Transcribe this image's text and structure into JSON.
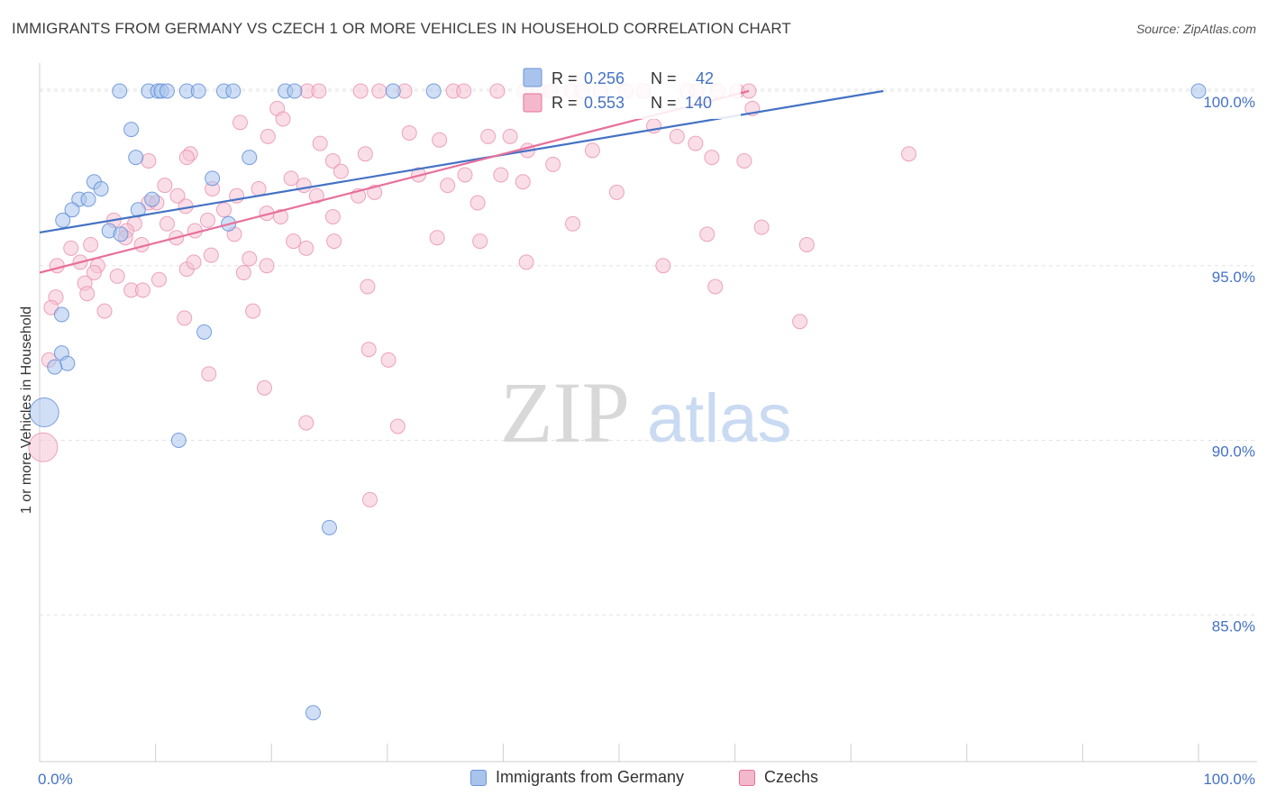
{
  "title": "IMMIGRANTS FROM GERMANY VS CZECH 1 OR MORE VEHICLES IN HOUSEHOLD CORRELATION CHART",
  "source": "Source: ZipAtlas.com",
  "watermark": {
    "zip": "ZIP",
    "atlas": "atlas"
  },
  "colors": {
    "blue": "#4472c4",
    "blue_fill": "#a9c4ec",
    "pink": "#e8709b",
    "pink_fill": "#f4b8cc"
  },
  "legend": [
    {
      "r_label": "R = ",
      "r_value": "0.256",
      "n_label": "N = ",
      "n_value": "42"
    },
    {
      "r_label": "R = ",
      "r_value": "0.553",
      "n_label": "N = ",
      "n_value": "140"
    }
  ],
  "chart_data": {
    "type": "scatter",
    "ylabel": "1 or more Vehicles in Household",
    "xlim": [
      0,
      100
    ],
    "ylim": [
      80.8,
      100.8
    ],
    "y_ticks": [
      {
        "value": 85,
        "label": "85.0%"
      },
      {
        "value": 90,
        "label": "90.0%"
      },
      {
        "value": 95,
        "label": "95.0%"
      },
      {
        "value": 100,
        "label": "100.0%"
      }
    ],
    "x_tick_labels": {
      "left": "0.0%",
      "right": "100.0%"
    },
    "legend_position": "top-center",
    "series": [
      {
        "name": "Immigrants from Germany",
        "color": "#4472c4",
        "trend": {
          "x0": 0,
          "y0": 95.95,
          "x1": 72.8,
          "y1": 100.0
        },
        "points": [
          [
            6.9,
            100
          ],
          [
            9.4,
            100
          ],
          [
            10.2,
            100
          ],
          [
            10.5,
            100
          ],
          [
            11.0,
            100
          ],
          [
            12.7,
            100
          ],
          [
            13.7,
            100
          ],
          [
            15.9,
            100
          ],
          [
            16.7,
            100
          ],
          [
            21.2,
            100
          ],
          [
            22.0,
            100
          ],
          [
            30.5,
            100
          ],
          [
            34.0,
            100
          ],
          [
            100,
            100
          ],
          [
            7.9,
            98.9
          ],
          [
            8.3,
            98.1
          ],
          [
            18.1,
            98.1
          ],
          [
            4.7,
            97.4
          ],
          [
            5.3,
            97.2
          ],
          [
            14.9,
            97.5
          ],
          [
            3.4,
            96.9
          ],
          [
            4.2,
            96.9
          ],
          [
            9.7,
            96.9
          ],
          [
            2.8,
            96.6
          ],
          [
            8.5,
            96.6
          ],
          [
            2.0,
            96.3
          ],
          [
            16.3,
            96.2
          ],
          [
            6.0,
            96.0
          ],
          [
            7.0,
            95.9
          ],
          [
            1.9,
            92.5
          ],
          [
            2.4,
            92.2
          ],
          [
            1.3,
            92.1
          ],
          [
            1.9,
            93.6
          ],
          [
            14.2,
            93.1
          ],
          [
            0.4,
            90.8
          ],
          [
            12.0,
            90.0
          ],
          [
            25.0,
            87.5
          ],
          [
            23.6,
            82.2
          ]
        ]
      },
      {
        "name": "Czechs",
        "color": "#e8709b",
        "trend": {
          "x0": 0,
          "y0": 94.8,
          "x1": 61.2,
          "y1": 100.0
        },
        "points": [
          [
            23.1,
            100
          ],
          [
            27.7,
            100
          ],
          [
            29.3,
            100
          ],
          [
            35.7,
            100
          ],
          [
            36.6,
            100
          ],
          [
            39.5,
            100
          ],
          [
            41.8,
            100
          ],
          [
            43.2,
            100
          ],
          [
            44.1,
            100
          ],
          [
            45.9,
            100
          ],
          [
            46.8,
            100
          ],
          [
            48.4,
            100
          ],
          [
            50.6,
            100
          ],
          [
            52.1,
            100
          ],
          [
            55.9,
            100
          ],
          [
            56.7,
            100
          ],
          [
            58.5,
            100
          ],
          [
            60.2,
            100
          ],
          [
            61.2,
            100
          ],
          [
            24.1,
            100
          ],
          [
            31.5,
            100
          ],
          [
            20.5,
            99.5
          ],
          [
            21.0,
            99.2
          ],
          [
            17.3,
            99.1
          ],
          [
            19.7,
            98.7
          ],
          [
            24.2,
            98.5
          ],
          [
            38.7,
            98.7
          ],
          [
            40.6,
            98.7
          ],
          [
            31.9,
            98.8
          ],
          [
            34.5,
            98.6
          ],
          [
            42.1,
            98.3
          ],
          [
            47.7,
            98.3
          ],
          [
            56.6,
            98.5
          ],
          [
            60.8,
            98.0
          ],
          [
            13.0,
            98.2
          ],
          [
            12.7,
            98.1
          ],
          [
            9.4,
            98.0
          ],
          [
            28.1,
            98.2
          ],
          [
            25.3,
            98.0
          ],
          [
            44.3,
            97.9
          ],
          [
            39.8,
            97.6
          ],
          [
            26.0,
            97.7
          ],
          [
            36.7,
            97.6
          ],
          [
            32.7,
            97.6
          ],
          [
            21.7,
            97.5
          ],
          [
            41.7,
            97.4
          ],
          [
            35.2,
            97.3
          ],
          [
            22.8,
            97.3
          ],
          [
            18.9,
            97.2
          ],
          [
            14.9,
            97.2
          ],
          [
            17.0,
            97.0
          ],
          [
            23.9,
            97.0
          ],
          [
            28.9,
            97.1
          ],
          [
            10.8,
            97.3
          ],
          [
            11.9,
            97.0
          ],
          [
            9.4,
            96.8
          ],
          [
            10.1,
            96.8
          ],
          [
            12.6,
            96.7
          ],
          [
            15.9,
            96.6
          ],
          [
            19.6,
            96.5
          ],
          [
            20.8,
            96.4
          ],
          [
            14.5,
            96.3
          ],
          [
            11.0,
            96.2
          ],
          [
            8.2,
            96.2
          ],
          [
            6.4,
            96.3
          ],
          [
            7.5,
            96.0
          ],
          [
            13.4,
            96.0
          ],
          [
            16.8,
            95.9
          ],
          [
            8.8,
            95.6
          ],
          [
            7.4,
            95.8
          ],
          [
            4.4,
            95.6
          ],
          [
            11.8,
            95.8
          ],
          [
            25.4,
            95.7
          ],
          [
            21.9,
            95.7
          ],
          [
            25.3,
            96.4
          ],
          [
            27.5,
            97.0
          ],
          [
            34.3,
            95.8
          ],
          [
            37.8,
            96.8
          ],
          [
            38.0,
            95.7
          ],
          [
            42.0,
            95.1
          ],
          [
            46.0,
            96.2
          ],
          [
            49.8,
            97.1
          ],
          [
            57.6,
            95.9
          ],
          [
            66.2,
            95.6
          ],
          [
            75.0,
            98.2
          ],
          [
            53.8,
            95.0
          ],
          [
            61.5,
            99.5
          ],
          [
            58.0,
            98.1
          ],
          [
            62.3,
            96.1
          ],
          [
            65.6,
            93.4
          ],
          [
            58.3,
            94.4
          ],
          [
            3.5,
            95.1
          ],
          [
            1.5,
            95.0
          ],
          [
            2.7,
            95.5
          ],
          [
            5.0,
            95.0
          ],
          [
            4.7,
            94.8
          ],
          [
            10.3,
            94.6
          ],
          [
            6.7,
            94.7
          ],
          [
            7.9,
            94.3
          ],
          [
            3.9,
            94.5
          ],
          [
            1.4,
            94.1
          ],
          [
            4.1,
            94.2
          ],
          [
            8.9,
            94.3
          ],
          [
            12.7,
            94.9
          ],
          [
            17.6,
            94.8
          ],
          [
            18.1,
            95.2
          ],
          [
            19.6,
            95.0
          ],
          [
            23.0,
            95.5
          ],
          [
            14.8,
            95.3
          ],
          [
            13.3,
            95.1
          ],
          [
            5.6,
            93.7
          ],
          [
            1.0,
            93.8
          ],
          [
            0.8,
            92.3
          ],
          [
            12.5,
            93.5
          ],
          [
            18.4,
            93.7
          ],
          [
            14.6,
            91.9
          ],
          [
            19.4,
            91.5
          ],
          [
            28.3,
            94.4
          ],
          [
            28.4,
            92.6
          ],
          [
            30.1,
            92.3
          ],
          [
            30.9,
            90.4
          ],
          [
            23.0,
            90.5
          ],
          [
            28.5,
            88.3
          ],
          [
            0.3,
            89.8
          ],
          [
            55.0,
            98.7
          ],
          [
            53.0,
            99.0
          ]
        ]
      }
    ]
  },
  "bottom_legend": [
    {
      "label": "Immigrants from Germany"
    },
    {
      "label": "Czechs"
    }
  ]
}
